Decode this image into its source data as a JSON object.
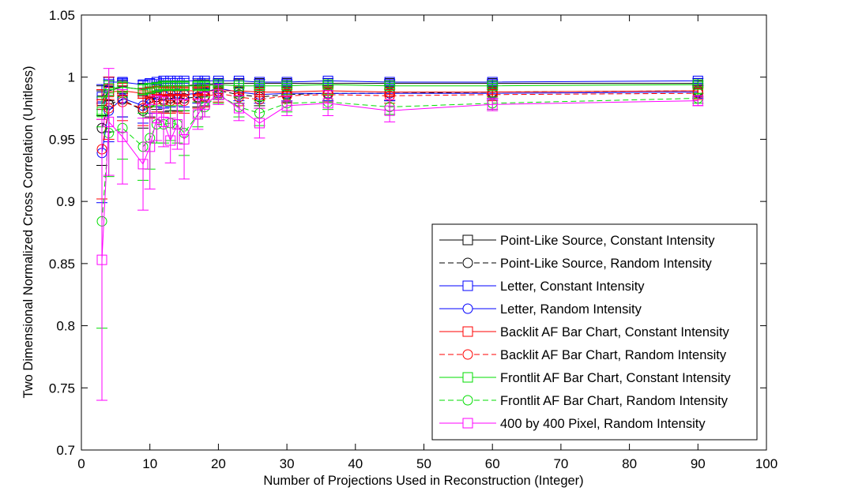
{
  "chart_data": {
    "type": "line",
    "xlabel": "Number of Projections Used in Reconstruction (Integer)",
    "ylabel": "Two Dimensional Normalized Cross Correlation (Unitless)",
    "xlim": [
      0,
      100
    ],
    "ylim": [
      0.7,
      1.05
    ],
    "x_ticks": [
      "0",
      "10",
      "20",
      "30",
      "40",
      "50",
      "60",
      "70",
      "80",
      "90",
      "100"
    ],
    "y_ticks": [
      "0.7",
      "0.75",
      "0.8",
      "0.85",
      "0.9",
      "0.95",
      "1",
      "1.05"
    ],
    "grid": false,
    "legend_position": "bottom-right",
    "x": [
      3,
      4,
      6,
      9,
      10,
      11,
      12,
      13,
      14,
      15,
      17,
      18,
      20,
      23,
      26,
      30,
      36,
      45,
      60,
      90
    ],
    "series": [
      {
        "name": "Point-Like Source, Constant Intensity",
        "color": "#000000",
        "marker": "square",
        "dash": "solid",
        "values": [
          0.981,
          0.989,
          0.992,
          0.99,
          0.991,
          0.992,
          0.993,
          0.993,
          0.993,
          0.993,
          0.994,
          0.994,
          0.995,
          0.995,
          0.995,
          0.995,
          0.995,
          0.995,
          0.995,
          0.995
        ],
        "errors": [
          0.012,
          0.008,
          0.005,
          0.005,
          0.004,
          0.004,
          0.004,
          0.004,
          0.004,
          0.004,
          0.003,
          0.003,
          0.003,
          0.003,
          0.003,
          0.002,
          0.002,
          0.002,
          0.002,
          0.002
        ]
      },
      {
        "name": "Point-Like Source, Random Intensity",
        "color": "#000000",
        "marker": "circle",
        "dash": "dashed",
        "values": [
          0.959,
          0.978,
          0.982,
          0.973,
          0.98,
          0.984,
          0.982,
          0.983,
          0.983,
          0.983,
          0.984,
          0.985,
          0.989,
          0.986,
          0.984,
          0.986,
          0.987,
          0.987,
          0.988,
          0.989
        ],
        "errors": [
          0.03,
          0.022,
          0.014,
          0.014,
          0.012,
          0.01,
          0.01,
          0.01,
          0.01,
          0.01,
          0.008,
          0.008,
          0.007,
          0.007,
          0.007,
          0.006,
          0.006,
          0.006,
          0.005,
          0.005
        ]
      },
      {
        "name": "Letter, Constant Intensity",
        "color": "#0000ff",
        "marker": "square",
        "dash": "solid",
        "values": [
          0.984,
          0.996,
          0.996,
          0.994,
          0.995,
          0.996,
          0.997,
          0.997,
          0.997,
          0.997,
          0.997,
          0.997,
          0.997,
          0.997,
          0.996,
          0.996,
          0.997,
          0.996,
          0.996,
          0.997
        ],
        "errors": [
          0.01,
          0.004,
          0.003,
          0.003,
          0.003,
          0.002,
          0.002,
          0.002,
          0.002,
          0.002,
          0.002,
          0.002,
          0.002,
          0.002,
          0.002,
          0.002,
          0.002,
          0.002,
          0.002,
          0.002
        ]
      },
      {
        "name": "Letter, Random Intensity",
        "color": "#0000ff",
        "marker": "circle",
        "dash": "solid",
        "values": [
          0.939,
          0.973,
          0.983,
          0.977,
          0.983,
          0.986,
          0.985,
          0.986,
          0.987,
          0.986,
          0.987,
          0.988,
          0.991,
          0.988,
          0.986,
          0.987,
          0.987,
          0.987,
          0.987,
          0.988
        ],
        "errors": [
          0.04,
          0.025,
          0.015,
          0.014,
          0.012,
          0.01,
          0.01,
          0.01,
          0.01,
          0.01,
          0.008,
          0.008,
          0.007,
          0.007,
          0.007,
          0.006,
          0.006,
          0.006,
          0.005,
          0.005
        ]
      },
      {
        "name": "Backlit AF Bar Chart, Constant Intensity",
        "color": "#ff0000",
        "marker": "square",
        "dash": "solid",
        "values": [
          0.978,
          0.988,
          0.989,
          0.987,
          0.988,
          0.989,
          0.989,
          0.989,
          0.989,
          0.989,
          0.989,
          0.989,
          0.989,
          0.989,
          0.988,
          0.988,
          0.989,
          0.988,
          0.988,
          0.989
        ],
        "errors": [
          0.012,
          0.006,
          0.004,
          0.004,
          0.004,
          0.003,
          0.003,
          0.003,
          0.003,
          0.003,
          0.003,
          0.003,
          0.002,
          0.002,
          0.002,
          0.002,
          0.002,
          0.002,
          0.002,
          0.002
        ]
      },
      {
        "name": "Backlit AF Bar Chart, Random Intensity",
        "color": "#ff0000",
        "marker": "circle",
        "dash": "dashed",
        "values": [
          0.942,
          0.975,
          0.98,
          0.975,
          0.979,
          0.982,
          0.981,
          0.981,
          0.982,
          0.981,
          0.983,
          0.984,
          0.987,
          0.984,
          0.982,
          0.985,
          0.986,
          0.985,
          0.986,
          0.987
        ],
        "errors": [
          0.04,
          0.025,
          0.015,
          0.014,
          0.012,
          0.01,
          0.01,
          0.01,
          0.01,
          0.01,
          0.008,
          0.008,
          0.007,
          0.007,
          0.007,
          0.006,
          0.006,
          0.006,
          0.005,
          0.005
        ]
      },
      {
        "name": "Frontlit AF Bar Chart, Constant Intensity",
        "color": "#00dd00",
        "marker": "square",
        "dash": "solid",
        "values": [
          0.972,
          0.991,
          0.992,
          0.99,
          0.991,
          0.992,
          0.993,
          0.993,
          0.993,
          0.993,
          0.993,
          0.993,
          0.994,
          0.993,
          0.993,
          0.993,
          0.994,
          0.993,
          0.993,
          0.994
        ],
        "errors": [
          0.012,
          0.006,
          0.004,
          0.004,
          0.004,
          0.003,
          0.003,
          0.003,
          0.003,
          0.003,
          0.003,
          0.003,
          0.002,
          0.002,
          0.002,
          0.002,
          0.002,
          0.002,
          0.002,
          0.002
        ]
      },
      {
        "name": "Frontlit AF Bar Chart, Random Intensity",
        "color": "#00dd00",
        "marker": "circle",
        "dash": "dashed",
        "values": [
          0.884,
          0.955,
          0.959,
          0.944,
          0.951,
          0.962,
          0.962,
          0.963,
          0.962,
          0.955,
          0.97,
          0.976,
          0.986,
          0.976,
          0.971,
          0.979,
          0.98,
          0.976,
          0.979,
          0.983
        ],
        "errors": [
          0.086,
          0.035,
          0.025,
          0.027,
          0.025,
          0.015,
          0.015,
          0.014,
          0.015,
          0.018,
          0.01,
          0.008,
          0.007,
          0.008,
          0.01,
          0.007,
          0.006,
          0.006,
          0.005,
          0.004
        ]
      },
      {
        "name": "400 by 400 Pixel, Random Intensity",
        "color": "#ff00ff",
        "marker": "square",
        "dash": "solid",
        "values": [
          0.853,
          0.964,
          0.952,
          0.93,
          0.944,
          0.967,
          0.964,
          0.949,
          0.962,
          0.95,
          0.97,
          0.978,
          0.986,
          0.975,
          0.963,
          0.977,
          0.979,
          0.973,
          0.978,
          0.981
        ],
        "errors": [
          0.113,
          0.043,
          0.038,
          0.037,
          0.034,
          0.018,
          0.02,
          0.018,
          0.02,
          0.032,
          0.012,
          0.01,
          0.008,
          0.01,
          0.012,
          0.008,
          0.01,
          0.009,
          0.005,
          0.004
        ]
      }
    ]
  }
}
